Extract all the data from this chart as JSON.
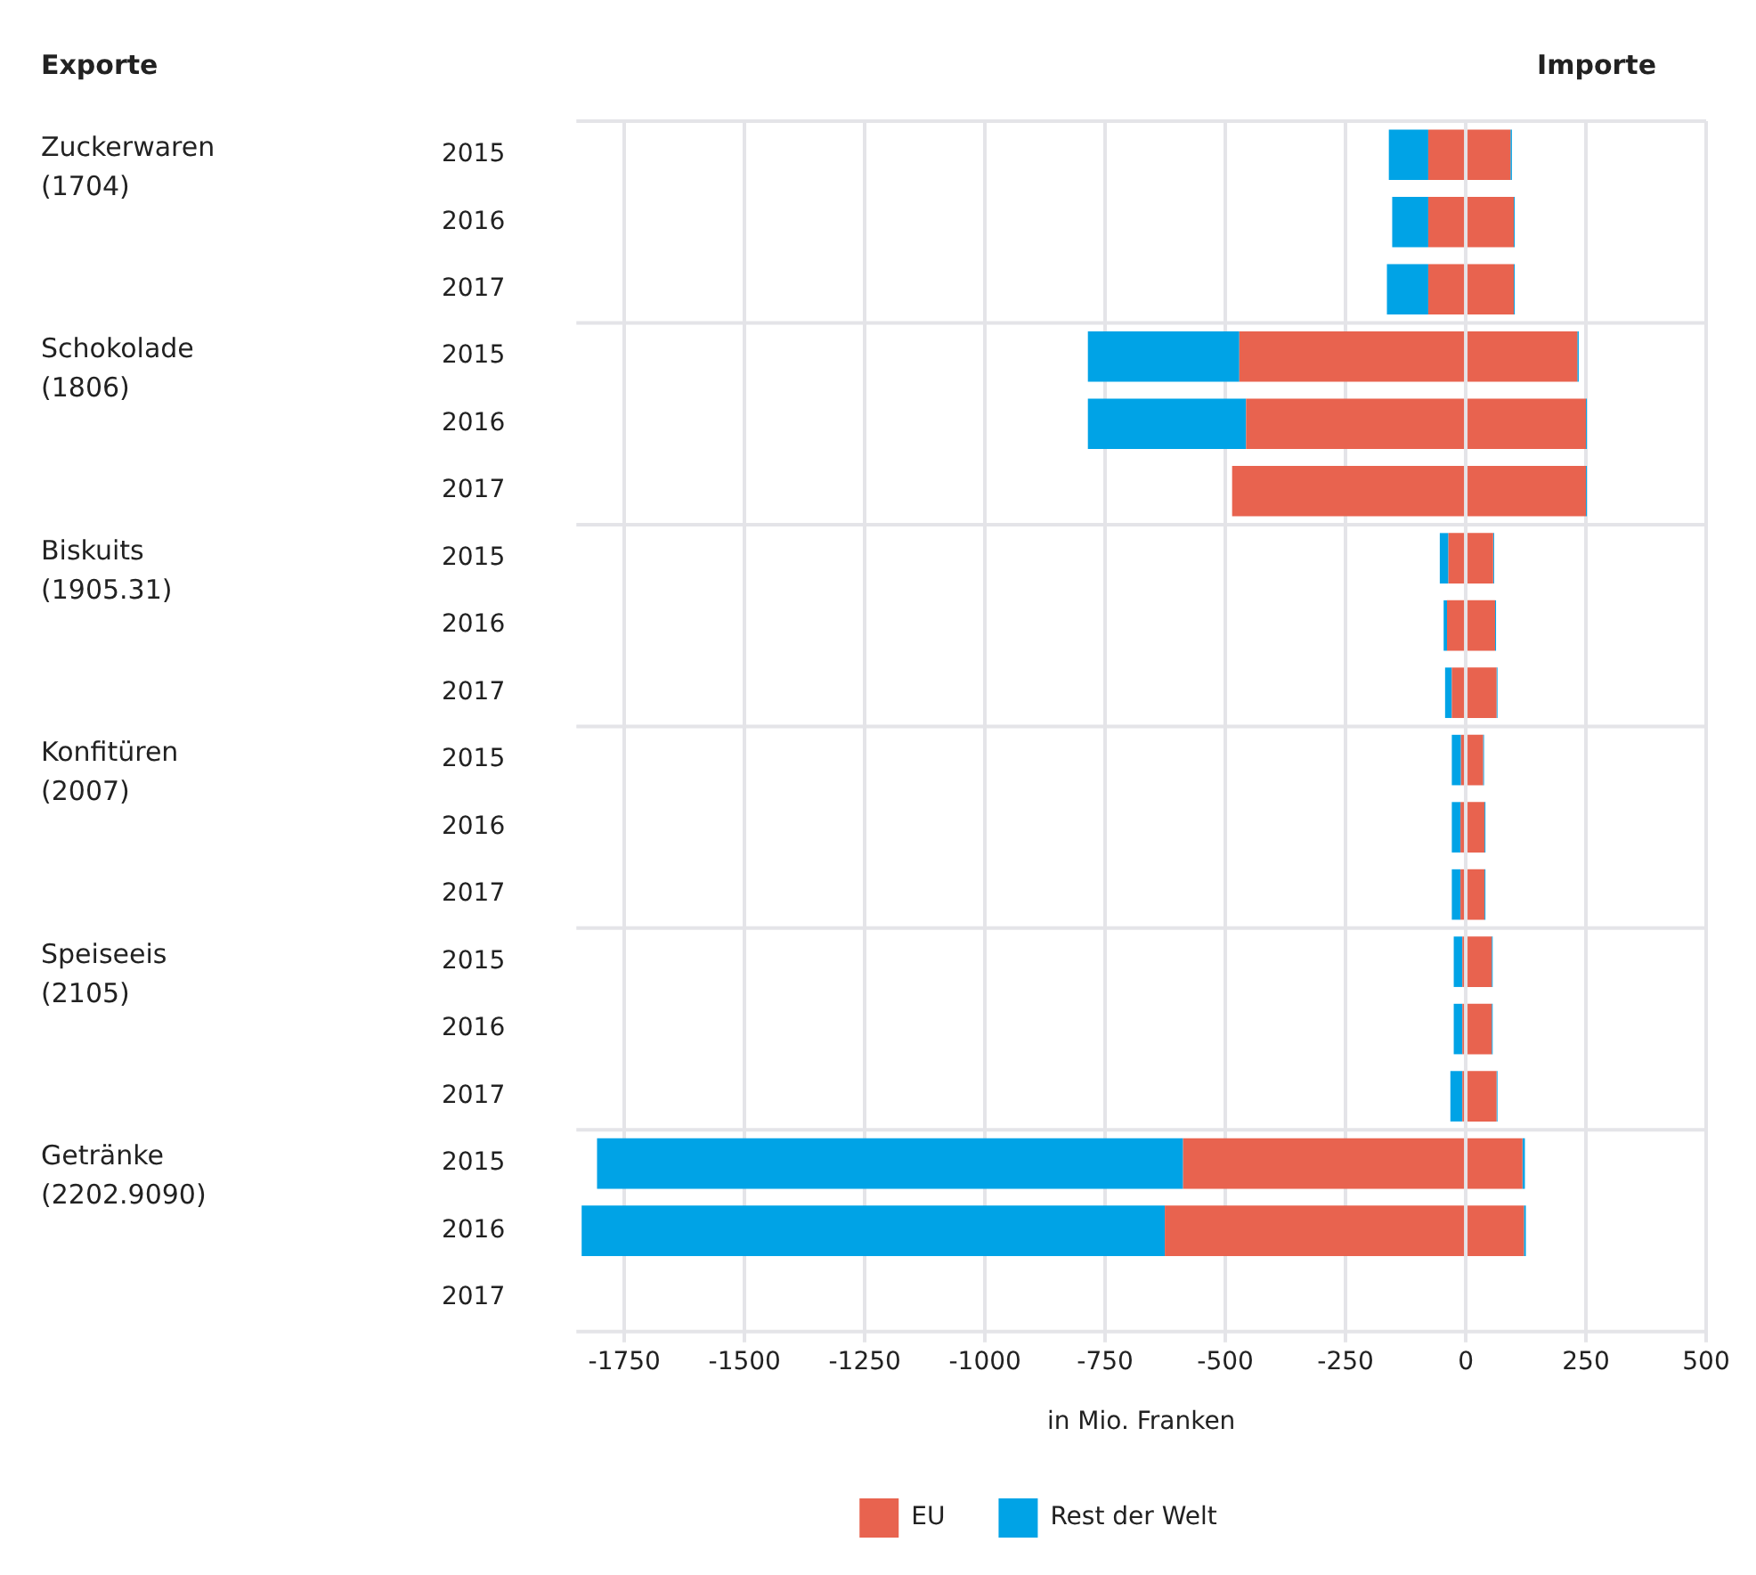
{
  "chart_data": {
    "type": "bar",
    "orientation": "horizontal",
    "stacked": true,
    "xlabel": "in Mio. Franken",
    "categories": [
      "2015",
      "2016",
      "2017",
      "2015",
      "2016",
      "2017",
      "2015",
      "2016",
      "2017",
      "2015",
      "2016",
      "2017",
      "2015",
      "2016",
      "2017",
      "2015",
      "2016",
      "2017"
    ],
    "series": [
      {
        "name": "EU",
        "color": "#e8634f",
        "values": [
          -78,
          -78,
          -78,
          -471,
          -457,
          -486,
          -36,
          -39,
          -29,
          -10,
          -11,
          -11,
          -7,
          -7,
          -7,
          -588,
          -626,
          null
        ]
      },
      {
        "name": "Rest der Welt",
        "color": "#00a3e6",
        "values": [
          -82,
          -75,
          -86,
          -315,
          -329,
          null,
          -18,
          -7,
          -14,
          -19,
          -18,
          -18,
          -18,
          -18,
          -25,
          -1219,
          -1213,
          null
        ]
      },
      {
        "color": "#e8634f",
        "values": [
          93,
          100,
          100,
          232,
          250,
          250,
          57,
          61,
          64,
          36,
          39,
          39,
          54,
          54,
          64,
          118,
          121,
          null
        ]
      },
      {
        "color": "#00a3e6",
        "values": [
          3,
          2,
          2,
          3,
          2,
          2,
          2,
          2,
          2,
          2,
          2,
          2,
          2,
          2,
          2,
          5,
          4,
          null
        ]
      }
    ],
    "xlim": [
      -1850,
      500
    ],
    "xticks": [
      -1750,
      -1500,
      -1250,
      -1000,
      -750,
      -500,
      -250,
      0,
      250,
      500
    ],
    "grid": "x",
    "legend": "bottom",
    "annotations": [
      "Exporte",
      "Importe",
      "Zuckerwaren\n(1704)",
      "Schokolade\n(1806)",
      "Biskuits\n(1905.31)",
      "Konfitüren\n(2007)",
      "Speiseeis\n(2105)",
      "Getränke\n(2202.9090)"
    ]
  }
}
